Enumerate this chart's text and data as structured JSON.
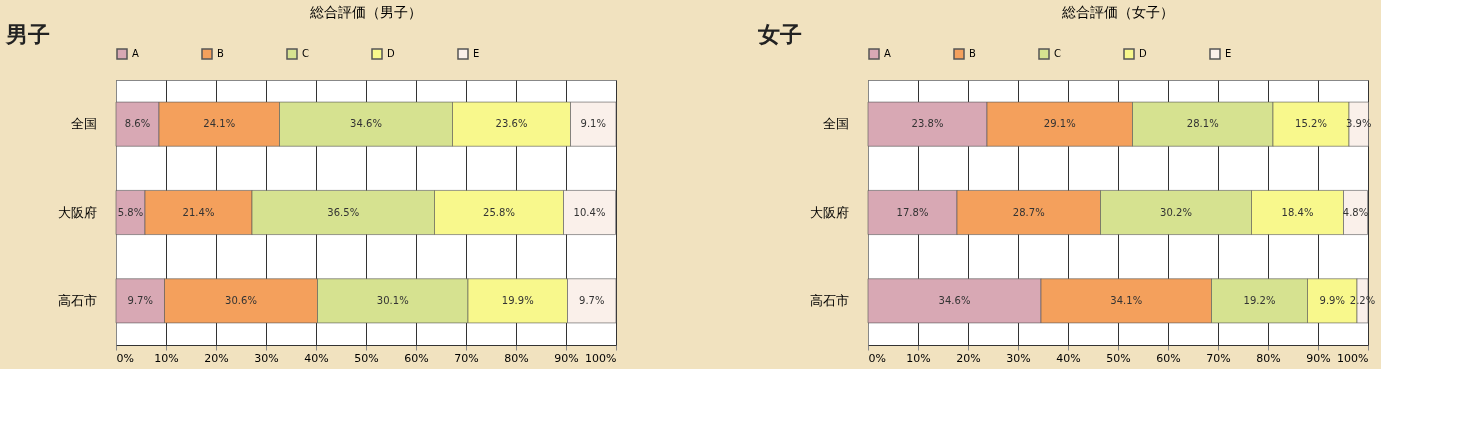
{
  "chart_data": [
    {
      "type": "bar",
      "orientation": "horizontal",
      "stacked": true,
      "title": "総合評価（男子）",
      "annotations": [
        "男子"
      ],
      "categories": [
        "全国",
        "大阪府",
        "高石市"
      ],
      "series": [
        {
          "name": "A",
          "color": "#d8a8b4",
          "values": [
            8.6,
            5.8,
            9.7
          ],
          "value_labels": [
            "8.6%",
            "5.8%",
            "9.7%"
          ]
        },
        {
          "name": "B",
          "color": "#f4a05c",
          "values": [
            24.1,
            21.4,
            30.6
          ],
          "value_labels": [
            "24.1%",
            "21.4%",
            "30.6%"
          ]
        },
        {
          "name": "C",
          "color": "#d6e290",
          "values": [
            34.6,
            36.5,
            30.1
          ],
          "value_labels": [
            "34.6%",
            "36.5%",
            "30.1%"
          ]
        },
        {
          "name": "D",
          "color": "#f8f88c",
          "values": [
            23.6,
            25.8,
            19.9
          ],
          "value_labels": [
            "23.6%",
            "25.8%",
            "19.9%"
          ]
        },
        {
          "name": "E",
          "color": "#faf0ea",
          "values": [
            9.1,
            10.4,
            9.7
          ],
          "value_labels": [
            "9.1%",
            "10.4%",
            "9.7%"
          ]
        }
      ],
      "xlim": [
        0,
        100
      ],
      "xticks": [
        {
          "value": 0,
          "label": "0%"
        },
        {
          "value": 10,
          "label": "10%"
        },
        {
          "value": 20,
          "label": "20%"
        },
        {
          "value": 30,
          "label": "30%"
        },
        {
          "value": 40,
          "label": "40%"
        },
        {
          "value": 50,
          "label": "50%"
        },
        {
          "value": 60,
          "label": "60%"
        },
        {
          "value": 70,
          "label": "70%"
        },
        {
          "value": 80,
          "label": "80%"
        },
        {
          "value": 90,
          "label": "90%"
        },
        {
          "value": 100,
          "label": "100%"
        }
      ],
      "grid": "x",
      "legend": "top"
    },
    {
      "type": "bar",
      "orientation": "horizontal",
      "stacked": true,
      "title": "総合評価（女子）",
      "annotations": [
        "女子"
      ],
      "categories": [
        "全国",
        "大阪府",
        "高石市"
      ],
      "series": [
        {
          "name": "A",
          "color": "#d8a8b4",
          "values": [
            23.8,
            17.8,
            34.6
          ],
          "value_labels": [
            "23.8%",
            "17.8%",
            "34.6%"
          ]
        },
        {
          "name": "B",
          "color": "#f4a05c",
          "values": [
            29.1,
            28.7,
            34.1
          ],
          "value_labels": [
            "29.1%",
            "28.7%",
            "34.1%"
          ]
        },
        {
          "name": "C",
          "color": "#d6e290",
          "values": [
            28.1,
            30.2,
            19.2
          ],
          "value_labels": [
            "28.1%",
            "30.2%",
            "19.2%"
          ]
        },
        {
          "name": "D",
          "color": "#f8f88c",
          "values": [
            15.2,
            18.4,
            9.9
          ],
          "value_labels": [
            "15.2%",
            "18.4%",
            "9.9%"
          ]
        },
        {
          "name": "E",
          "color": "#faf0ea",
          "values": [
            3.9,
            4.8,
            2.2
          ],
          "value_labels": [
            "3.9%",
            "4.8%",
            "2.2%"
          ]
        }
      ],
      "xlim": [
        0,
        100
      ],
      "xticks": [
        {
          "value": 0,
          "label": "0%"
        },
        {
          "value": 10,
          "label": "10%"
        },
        {
          "value": 20,
          "label": "20%"
        },
        {
          "value": 30,
          "label": "30%"
        },
        {
          "value": 40,
          "label": "40%"
        },
        {
          "value": 50,
          "label": "50%"
        },
        {
          "value": 60,
          "label": "60%"
        },
        {
          "value": 70,
          "label": "70%"
        },
        {
          "value": 80,
          "label": "80%"
        },
        {
          "value": 90,
          "label": "90%"
        },
        {
          "value": 100,
          "label": "100%"
        }
      ],
      "grid": "x",
      "legend": "top"
    }
  ]
}
